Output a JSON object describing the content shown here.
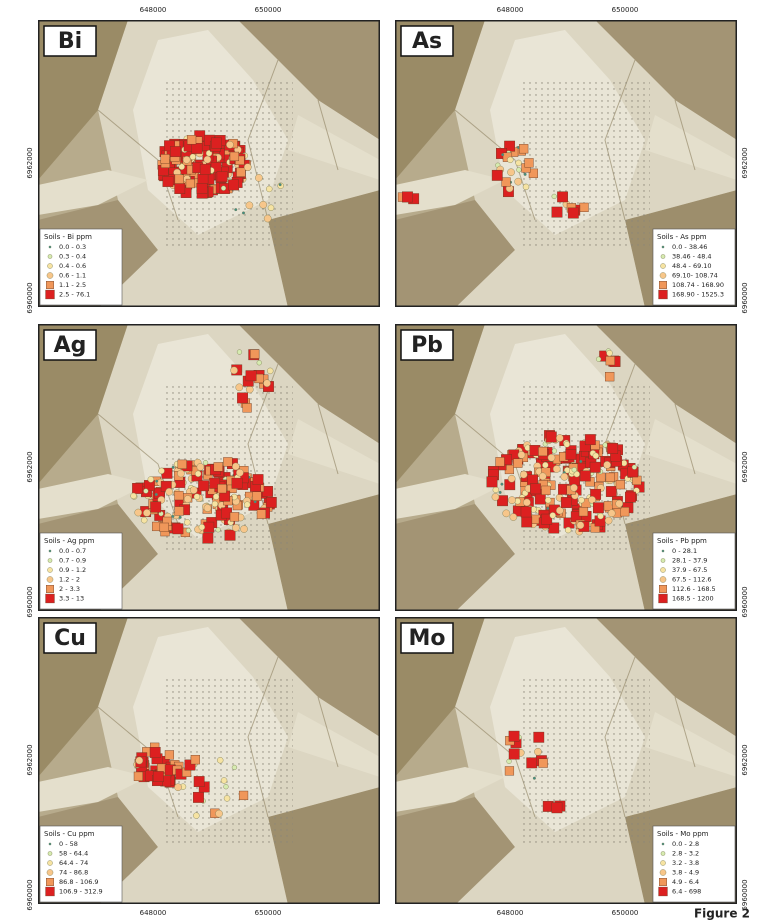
{
  "figure": {
    "caption": "Figure 2",
    "x_labels": [
      "648000",
      "650000"
    ],
    "y_labels": [
      "6962000",
      "6960000"
    ],
    "symbol_colors": [
      "#3f8f86",
      "#d6ebb0",
      "#f6e3a2",
      "#f7c68a",
      "#f0975a",
      "#dc2020"
    ],
    "panels": [
      {
        "label": "Bi",
        "legend_title": "Soils - Bi ppm",
        "legend_corner": "bottom-left",
        "legend": [
          "0.0 - 0.3",
          "0.3 - 0.4",
          "0.4 - 0.6",
          "0.6 - 1.1",
          "1.1 - 2.5",
          "2.5 - 76.1"
        ]
      },
      {
        "label": "As",
        "legend_title": "Soils - As ppm",
        "legend_corner": "bottom-right",
        "legend": [
          "0.0 - 38.46",
          "38.46 - 48.4",
          "48.4 - 69.10",
          "69.10- 108.74",
          "108.74 - 168.90",
          "168.90 - 1525.3"
        ]
      },
      {
        "label": "Ag",
        "legend_title": "Soils - Ag ppm",
        "legend_corner": "bottom-left",
        "legend": [
          "0.0 - 0.7",
          "0.7 - 0.9",
          "0.9 - 1.2",
          "1.2 - 2",
          "2 - 3.3",
          "3.3 - 13"
        ]
      },
      {
        "label": "Pb",
        "legend_title": "Soils - Pb ppm",
        "legend_corner": "bottom-right",
        "legend": [
          "0 - 28.1",
          "28.1 - 37.9",
          "37.9 - 67.5",
          "67.5 - 112.6",
          "112.6 - 168.5",
          "168.5 - 1200"
        ]
      },
      {
        "label": "Cu",
        "legend_title": "Soils - Cu ppm",
        "legend_corner": "bottom-left",
        "legend": [
          "0 - 58",
          "58 - 64.4",
          "64.4 - 74",
          "74 - 86.8",
          "86.8 - 106.9",
          "106.9 - 312.9"
        ]
      },
      {
        "label": "Mo",
        "legend_title": "Soils - Mo ppm",
        "legend_corner": "bottom-right",
        "legend": [
          "0.0 - 2.8",
          "2.8 - 3.2",
          "3.2 - 3.8",
          "3.8 - 4.9",
          "4.9 - 6.4",
          "6.4 - 698"
        ]
      }
    ]
  }
}
